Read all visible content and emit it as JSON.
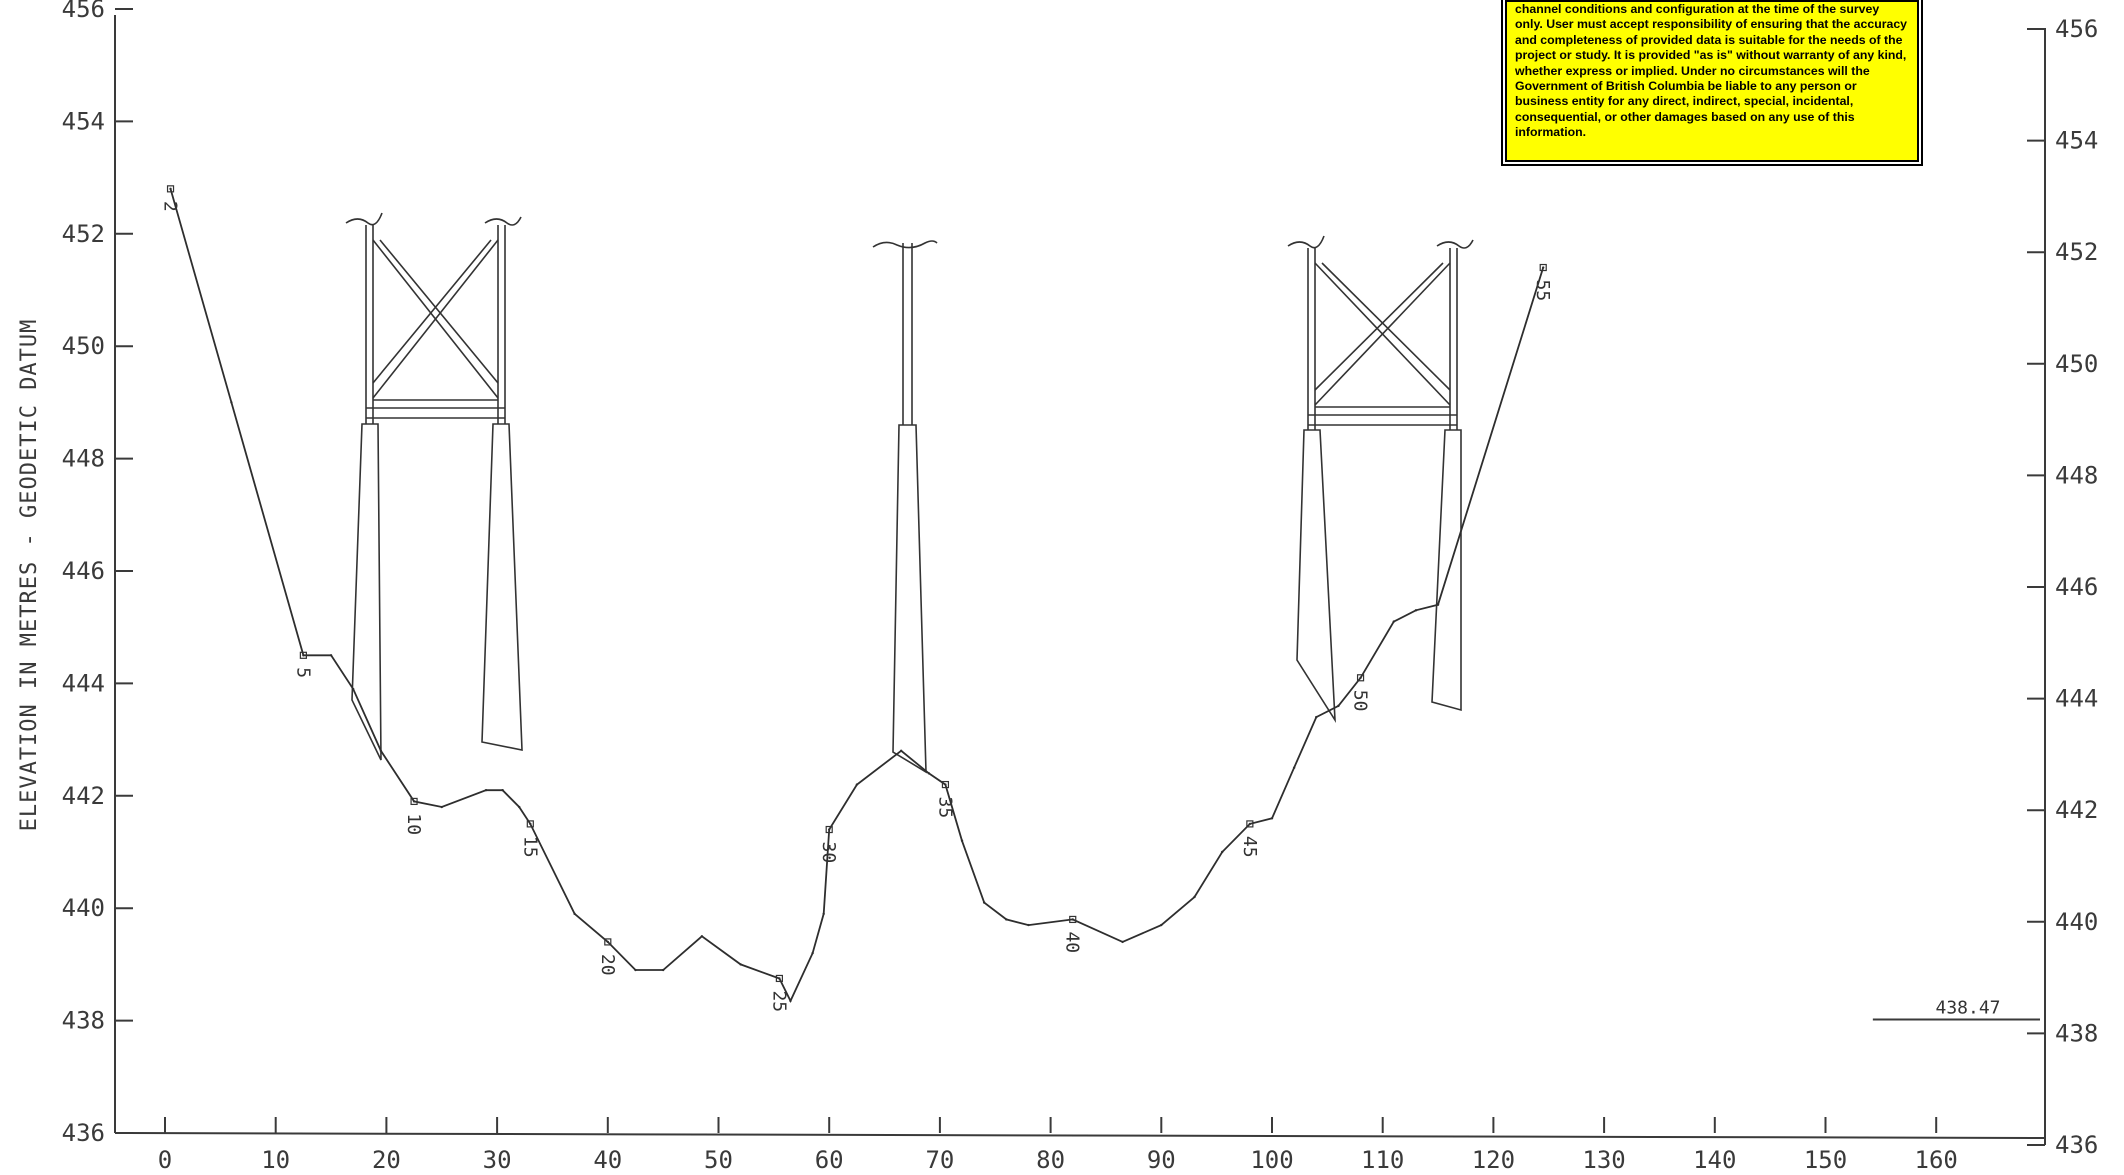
{
  "disclaimer": {
    "text": "channel conditions and configuration at the time of the survey only. User must accept responsibility of ensuring that the accuracy and completeness of provided data is suitable for the needs of the project or study. It is provided \"as is\" without warranty of any kind, whether express or implied. Under no circumstances will the Government of British Columbia be liable to any person or business entity for any direct, indirect, special, incidental, consequential, or other damages based on any use of this information.",
    "background": "#ffff00"
  },
  "chart_data": {
    "type": "line",
    "ylabel": "ELEVATION IN METRES - GEODETIC DATUM",
    "xlabel": "",
    "title": "",
    "xlim": [
      0,
      160
    ],
    "ylim": [
      436,
      456
    ],
    "x_ticks": [
      "0",
      "10",
      "20",
      "30",
      "40",
      "50",
      "60",
      "70",
      "80",
      "90",
      "100",
      "110",
      "120",
      "130",
      "140",
      "150",
      "160"
    ],
    "y_ticks": [
      "436",
      "438",
      "440",
      "442",
      "444",
      "446",
      "448",
      "450",
      "452",
      "454",
      "456"
    ],
    "water_level": {
      "label": "438.47",
      "x_from": 155,
      "x_to": 170,
      "y": 438.25
    },
    "profile": [
      {
        "x": 0.5,
        "y": 452.8
      },
      {
        "x": 6,
        "y": 449.0
      },
      {
        "x": 12.5,
        "y": 444.5
      },
      {
        "x": 15,
        "y": 444.5
      },
      {
        "x": 17,
        "y": 443.9
      },
      {
        "x": 19.5,
        "y": 442.8
      },
      {
        "x": 22.5,
        "y": 441.9
      },
      {
        "x": 25,
        "y": 441.8
      },
      {
        "x": 29,
        "y": 442.1
      },
      {
        "x": 30.5,
        "y": 442.1
      },
      {
        "x": 32,
        "y": 441.8
      },
      {
        "x": 33,
        "y": 441.5
      },
      {
        "x": 37,
        "y": 439.9
      },
      {
        "x": 40,
        "y": 439.4
      },
      {
        "x": 42.5,
        "y": 438.9
      },
      {
        "x": 45,
        "y": 438.9
      },
      {
        "x": 48.5,
        "y": 439.5
      },
      {
        "x": 52,
        "y": 439.0
      },
      {
        "x": 55.5,
        "y": 438.75
      },
      {
        "x": 56.5,
        "y": 438.35
      },
      {
        "x": 58.5,
        "y": 439.2
      },
      {
        "x": 59.5,
        "y": 439.9
      },
      {
        "x": 60,
        "y": 441.4
      },
      {
        "x": 62.5,
        "y": 442.2
      },
      {
        "x": 66.5,
        "y": 442.8
      },
      {
        "x": 69,
        "y": 442.4
      },
      {
        "x": 70.5,
        "y": 442.2
      },
      {
        "x": 72,
        "y": 441.2
      },
      {
        "x": 74,
        "y": 440.1
      },
      {
        "x": 76,
        "y": 439.8
      },
      {
        "x": 78,
        "y": 439.7
      },
      {
        "x": 82,
        "y": 439.8
      },
      {
        "x": 86.5,
        "y": 439.4
      },
      {
        "x": 90,
        "y": 439.7
      },
      {
        "x": 93,
        "y": 440.2
      },
      {
        "x": 95.5,
        "y": 441.0
      },
      {
        "x": 98,
        "y": 441.5
      },
      {
        "x": 100,
        "y": 441.6
      },
      {
        "x": 102,
        "y": 442.5
      },
      {
        "x": 104,
        "y": 443.4
      },
      {
        "x": 106,
        "y": 443.6
      },
      {
        "x": 108,
        "y": 444.1
      },
      {
        "x": 111,
        "y": 445.1
      },
      {
        "x": 113,
        "y": 445.3
      },
      {
        "x": 115,
        "y": 445.4
      },
      {
        "x": 124.5,
        "y": 451.4
      }
    ],
    "station_labels": [
      {
        "label": "2",
        "x": 0.5,
        "y": 452.8
      },
      {
        "label": "5",
        "x": 12.5,
        "y": 444.5
      },
      {
        "label": "10",
        "x": 22.5,
        "y": 441.9
      },
      {
        "label": "15",
        "x": 33,
        "y": 441.5
      },
      {
        "label": "20",
        "x": 40,
        "y": 439.4
      },
      {
        "label": "25",
        "x": 55.5,
        "y": 438.75
      },
      {
        "label": "30",
        "x": 60,
        "y": 441.4
      },
      {
        "label": "35",
        "x": 70.5,
        "y": 442.2
      },
      {
        "label": "40",
        "x": 82,
        "y": 439.8
      },
      {
        "label": "45",
        "x": 98,
        "y": 441.5
      },
      {
        "label": "50",
        "x": 108,
        "y": 444.1
      },
      {
        "label": "55",
        "x": 124.5,
        "y": 451.4
      }
    ]
  }
}
